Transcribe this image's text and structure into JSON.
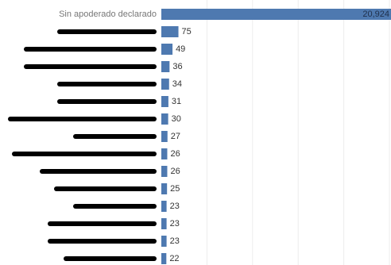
{
  "chart_data": {
    "type": "bar",
    "orientation": "horizontal",
    "categories": [
      "Sin apoderado declarado",
      null,
      null,
      null,
      null,
      null,
      null,
      null,
      null,
      null,
      null,
      null,
      null,
      null,
      null
    ],
    "values": [
      20924,
      75,
      49,
      36,
      34,
      31,
      30,
      27,
      26,
      26,
      25,
      23,
      23,
      23,
      22
    ],
    "value_labels": [
      "20,924",
      "75",
      "49",
      "36",
      "34",
      "31",
      "30",
      "27",
      "26",
      "26",
      "25",
      "23",
      "23",
      "23",
      "22"
    ],
    "color": "#4e79b0",
    "xlim": [
      0,
      1000
    ],
    "xticks": [
      0,
      200,
      400,
      600,
      800,
      1000
    ],
    "grid": true
  }
}
